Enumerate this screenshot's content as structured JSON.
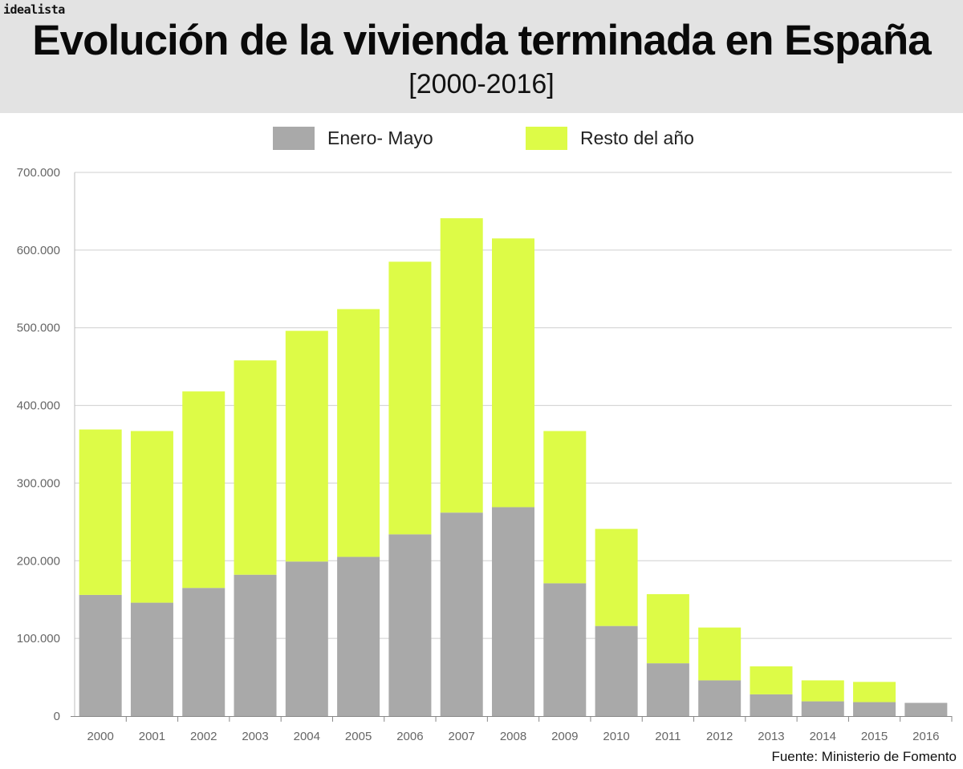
{
  "brand": "idealista",
  "chart_data": {
    "type": "bar",
    "stacked": true,
    "title": "Evolución de la vivienda terminada en España",
    "subtitle": "[2000-2016]",
    "categories": [
      "2000",
      "2001",
      "2002",
      "2003",
      "2004",
      "2005",
      "2006",
      "2007",
      "2008",
      "2009",
      "2010",
      "2011",
      "2012",
      "2013",
      "2014",
      "2015",
      "2016"
    ],
    "series": [
      {
        "name": "Enero- Mayo",
        "color": "#a9a9a9",
        "values": [
          156000,
          146000,
          165000,
          182000,
          199000,
          205000,
          234000,
          262000,
          269000,
          171000,
          116000,
          68000,
          46000,
          28000,
          19000,
          18000,
          17000
        ]
      },
      {
        "name": "Resto del año",
        "color": "#ddfb47",
        "values": [
          213000,
          221000,
          253000,
          276000,
          297000,
          319000,
          351000,
          379000,
          346000,
          196000,
          125000,
          89000,
          68000,
          36000,
          27000,
          26000,
          0
        ]
      }
    ],
    "y_ticks": [
      "0",
      "100.000",
      "200.000",
      "300.000",
      "400.000",
      "500.000",
      "600.000",
      "700.000"
    ],
    "y_tick_values": [
      0,
      100000,
      200000,
      300000,
      400000,
      500000,
      600000,
      700000
    ],
    "ylim": [
      0,
      700000
    ],
    "grid": true,
    "legend_position": "top"
  },
  "legend": [
    {
      "label": "Enero- Mayo",
      "color": "#a9a9a9"
    },
    {
      "label": "Resto del año",
      "color": "#ddfb47"
    }
  ],
  "source": "Fuente: Ministerio de Fomento"
}
